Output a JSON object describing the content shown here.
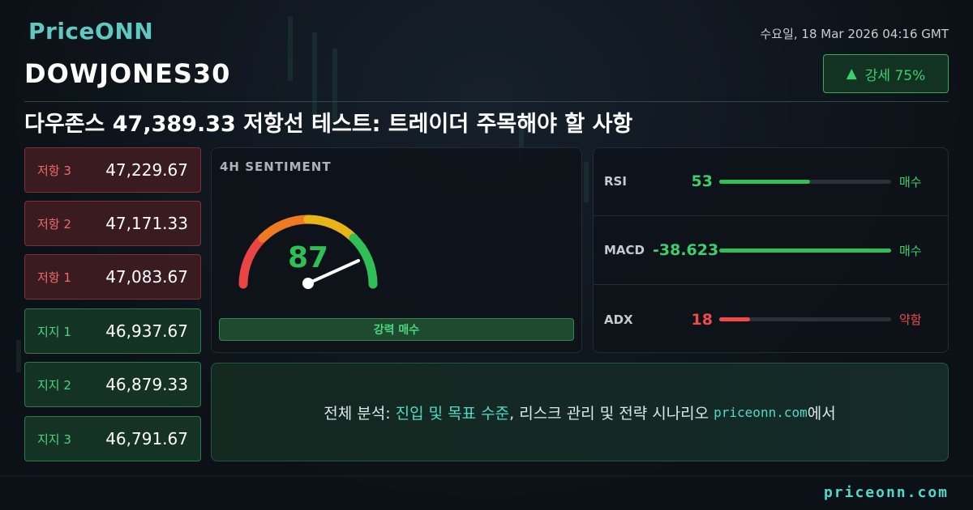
{
  "header": {
    "logo": "PriceONN",
    "datetime": "수요일, 18 Mar 2026 04:16 GMT",
    "symbol": "DOWJONES30",
    "badge": "강세 75%",
    "headline": "다우존스 47,389.33 저항선 테스트: 트레이더 주목해야 할 사항"
  },
  "levels": [
    {
      "label": "저항 3",
      "value": "47,229.67"
    },
    {
      "label": "저항 2",
      "value": "47,171.33"
    },
    {
      "label": "저항 1",
      "value": "47,083.67"
    },
    {
      "label": "지지 1",
      "value": "46,937.67"
    },
    {
      "label": "지지 2",
      "value": "46,879.33"
    },
    {
      "label": "지지 3",
      "value": "46,791.67"
    }
  ],
  "sentiment": {
    "title": "4H SENTIMENT",
    "score": "87",
    "signal": "강력 매수"
  },
  "indicators": [
    {
      "name": "RSI",
      "value": "53",
      "signal": "매수"
    },
    {
      "name": "MACD",
      "value": "-38.623",
      "signal": "매수"
    },
    {
      "name": "ADX",
      "value": "18",
      "signal": "약함"
    }
  ],
  "cta": {
    "prefix": "전체 분석:",
    "highlight": "진입 및 목표 수준",
    "middle": ", 리스크 관리 및 전략 시나리오",
    "site": "priceonn.com",
    "suffix": "에서"
  },
  "footer": "priceonn.com"
}
